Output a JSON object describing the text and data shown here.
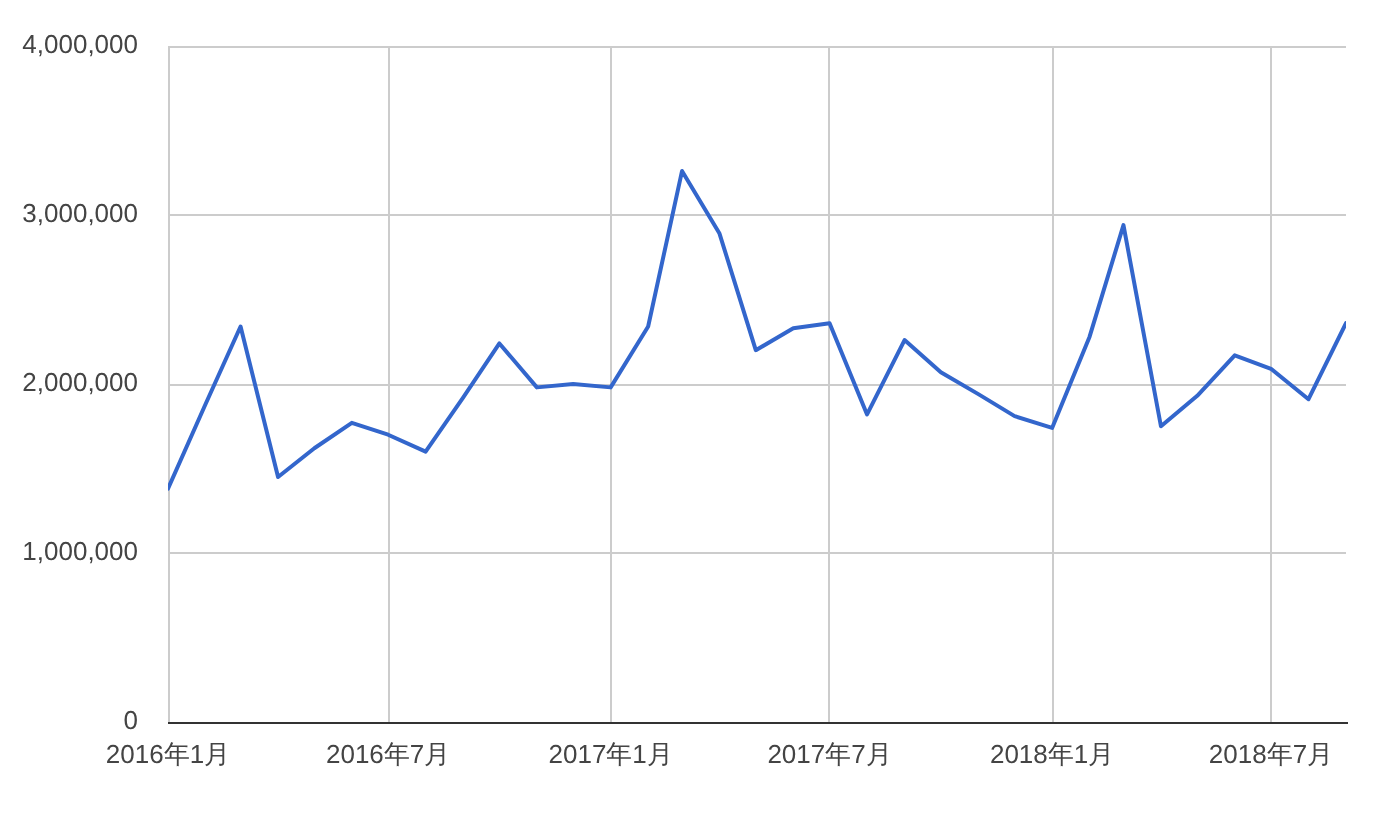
{
  "chart_data": {
    "type": "line",
    "x": [
      "2016-01",
      "2016-02",
      "2016-03",
      "2016-04",
      "2016-05",
      "2016-06",
      "2016-07",
      "2016-08",
      "2016-09",
      "2016-10",
      "2016-11",
      "2016-12",
      "2017-01",
      "2017-02",
      "2017-03",
      "2017-04",
      "2017-05",
      "2017-06",
      "2017-07",
      "2017-08",
      "2017-09",
      "2017-10",
      "2017-11",
      "2017-12",
      "2018-01",
      "2018-02",
      "2018-03",
      "2018-04",
      "2018-05",
      "2018-06",
      "2018-07",
      "2018-08",
      "2018-09"
    ],
    "series": [
      {
        "color": "#3366cc",
        "values": [
          1380000,
          1880000,
          2340000,
          1450000,
          1620000,
          1770000,
          1700000,
          1600000,
          1920000,
          2240000,
          1980000,
          2000000,
          1980000,
          2340000,
          3260000,
          2890000,
          2200000,
          2330000,
          2360000,
          1820000,
          2260000,
          2070000,
          1940000,
          1810000,
          1740000,
          2280000,
          2940000,
          1750000,
          1930000,
          2170000,
          2090000,
          1910000,
          2360000
        ]
      }
    ],
    "xlim": [
      "2016-01",
      "2018-09"
    ],
    "xticks": [
      {
        "value": "2016-01",
        "label": "2016年1月"
      },
      {
        "value": "2016-07",
        "label": "2016年7月"
      },
      {
        "value": "2017-01",
        "label": "2017年1月"
      },
      {
        "value": "2017-07",
        "label": "2017年7月"
      },
      {
        "value": "2018-01",
        "label": "2018年1月"
      },
      {
        "value": "2018-07",
        "label": "2018年7月"
      }
    ],
    "ylim": [
      0,
      4000000
    ],
    "yticks": [
      0,
      {
        "value": 1000000,
        "label": "1,000,000"
      },
      {
        "value": 2000000,
        "label": "2,000,000"
      },
      {
        "value": 3000000,
        "label": "3,000,000"
      },
      {
        "value": 4000000,
        "label": "4,000,000"
      }
    ],
    "grid": true
  }
}
